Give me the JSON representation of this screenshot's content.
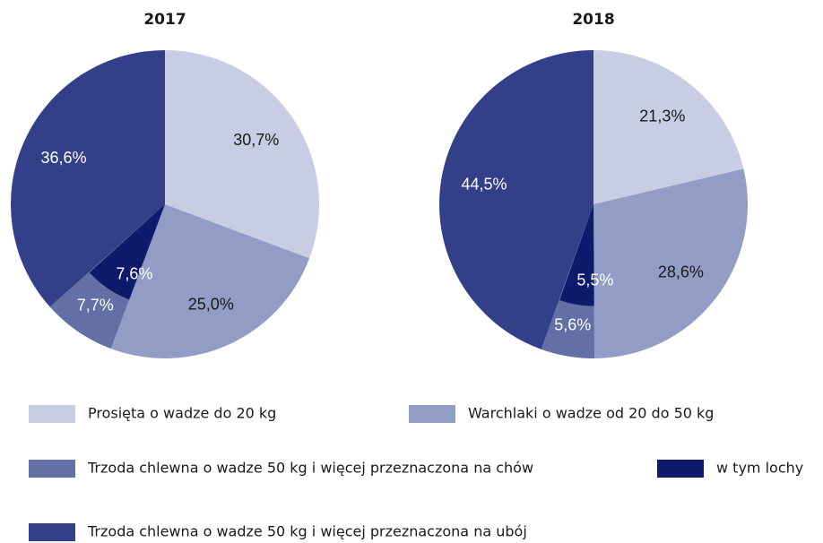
{
  "legend": [
    {
      "name": "Prosięta o wadze do 20 kg",
      "color": "#c8cde4"
    },
    {
      "name": "Warchlaki o wadze od 20 do 50 kg",
      "color": "#919dc5"
    },
    {
      "name": "Trzoda chlewna o wadze 50 kg i więcej przeznaczona na chów",
      "color": "#6370a5"
    },
    {
      "name": "w tym lochy",
      "color": "#0e1a6c"
    },
    {
      "name": "Trzoda chlewna o wadze 50 kg i więcej przeznaczona na ubój",
      "color": "#333f88"
    }
  ],
  "chart_data": [
    {
      "type": "pie",
      "title": "2017",
      "values": [
        30.7,
        25.0,
        7.7,
        7.6,
        36.6
      ],
      "value_labels": [
        "30,7%",
        "25,0%",
        "7,7%",
        "7,6%",
        "36,6%"
      ]
    },
    {
      "type": "pie",
      "title": "2018",
      "values": [
        21.3,
        28.6,
        5.6,
        5.5,
        44.5
      ],
      "value_labels": [
        "21,3%",
        "28,6%",
        "5,6%",
        "5,5%",
        "44,5%"
      ]
    }
  ]
}
